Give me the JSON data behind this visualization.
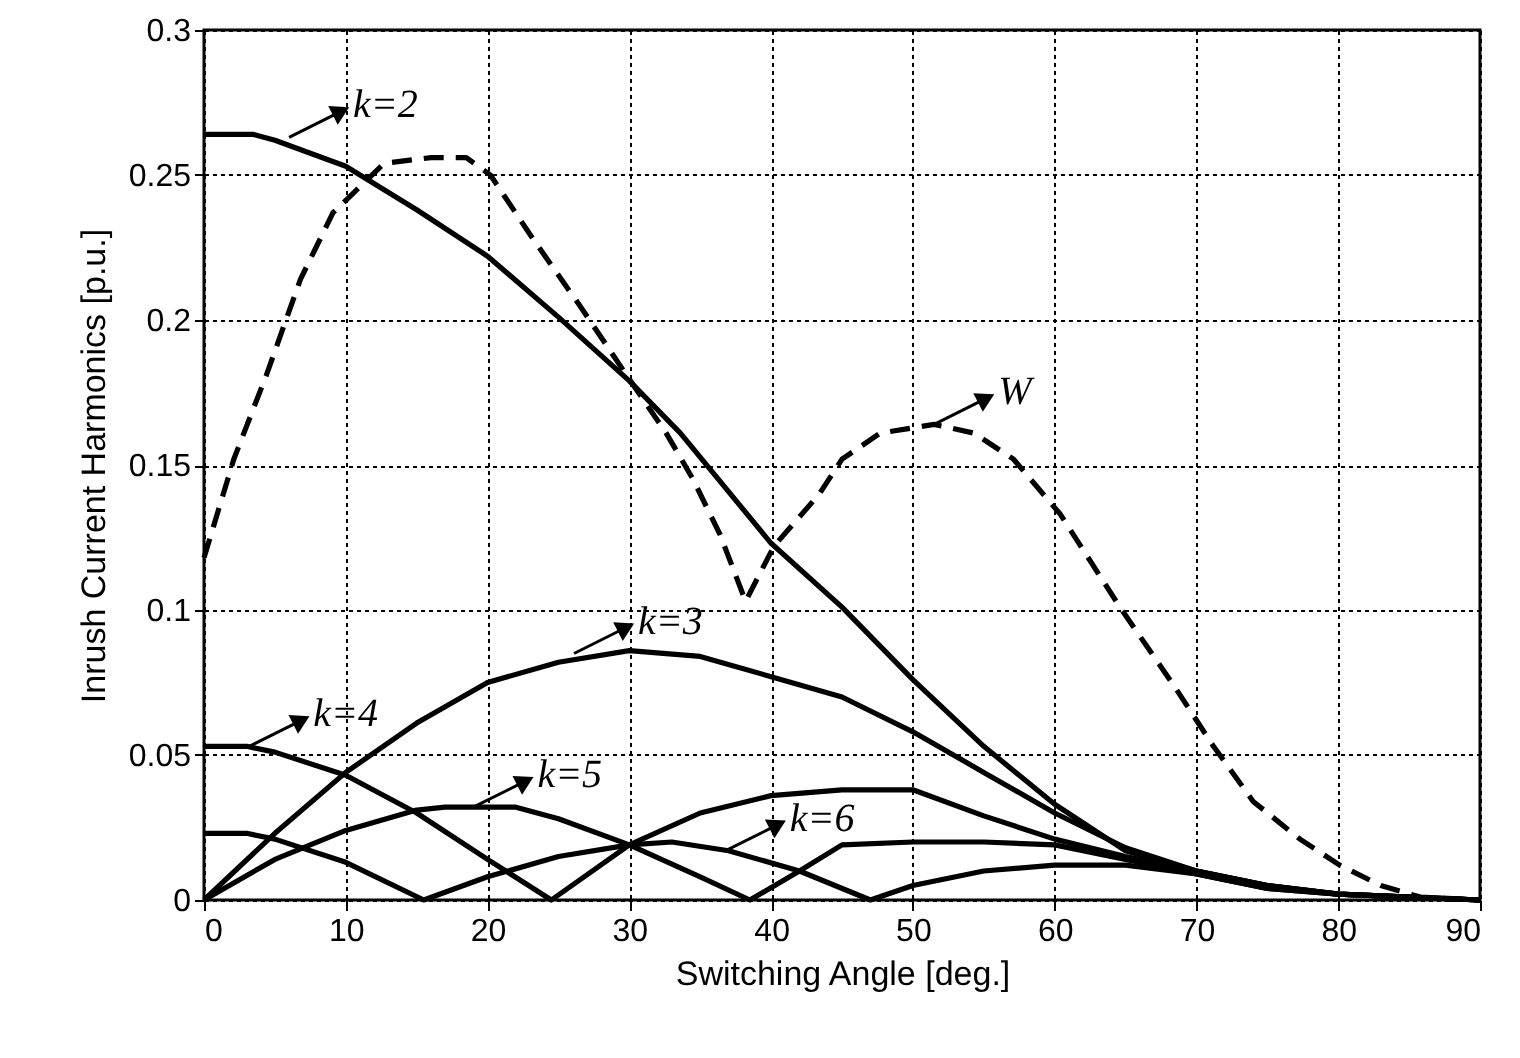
{
  "chart_data": {
    "type": "line",
    "xlabel": "Switching Angle [deg.]",
    "ylabel": "Inrush Current Harmonics [p.u.]",
    "xlim": [
      0,
      90
    ],
    "xticks": [
      0,
      10,
      20,
      30,
      40,
      50,
      60,
      70,
      80,
      90
    ],
    "ylim": [
      0,
      0.3
    ],
    "yticks": [
      0,
      0.05,
      0.1,
      0.15,
      0.2,
      0.25,
      0.3
    ],
    "grid": true,
    "series": [
      {
        "color": "#000000",
        "line_style": "solid",
        "x": [
          0,
          3.5,
          5,
          10,
          15,
          20,
          25,
          30,
          33.6,
          40,
          45,
          50,
          55,
          60,
          65,
          70,
          75,
          80,
          85,
          90
        ],
        "values": [
          0.264,
          0.264,
          0.262,
          0.253,
          0.238,
          0.222,
          0.201,
          0.179,
          0.161,
          0.123,
          0.101,
          0.076,
          0.053,
          0.033,
          0.017,
          0.01,
          0.005,
          0.002,
          0.001,
          0
        ]
      },
      {
        "color": "#000000",
        "line_style": "dashed",
        "x": [
          0,
          2.1,
          4.4,
          6.8,
          9.1,
          12.7,
          16,
          18.5,
          20.2,
          23.2,
          26.5,
          29.8,
          32.6,
          34.5,
          36.4,
          38.2,
          40.2,
          43.4,
          45,
          47.7,
          51.5,
          54.3,
          57.1,
          60.4,
          64.6,
          68.4,
          71.2,
          74,
          77.3,
          80.1,
          83,
          85.8,
          90
        ],
        "values": [
          0.118,
          0.152,
          0.181,
          0.214,
          0.237,
          0.254,
          0.256,
          0.256,
          0.25,
          0.228,
          0.205,
          0.181,
          0.161,
          0.145,
          0.126,
          0.103,
          0.122,
          0.14,
          0.152,
          0.161,
          0.164,
          0.161,
          0.152,
          0.133,
          0.101,
          0.074,
          0.053,
          0.034,
          0.021,
          0.012,
          0.005,
          0.001,
          0
        ]
      },
      {
        "color": "#000000",
        "line_style": "solid",
        "x": [
          0,
          5,
          10,
          15,
          20,
          25,
          30,
          35,
          40,
          45,
          50,
          55,
          60,
          65,
          70,
          75,
          80,
          85,
          90
        ],
        "values": [
          0,
          0.023,
          0.044,
          0.061,
          0.075,
          0.082,
          0.086,
          0.084,
          0.077,
          0.07,
          0.058,
          0.044,
          0.03,
          0.018,
          0.01,
          0.005,
          0.002,
          0.001,
          0
        ]
      },
      {
        "color": "#000000",
        "line_style": "solid",
        "x": [
          0,
          3,
          5,
          10,
          15,
          20,
          24.5,
          30,
          35,
          40,
          45,
          50,
          55,
          60,
          65,
          70,
          75,
          80,
          90
        ],
        "values": [
          0.053,
          0.053,
          0.051,
          0.043,
          0.03,
          0.014,
          0,
          0.019,
          0.03,
          0.036,
          0.038,
          0.038,
          0.029,
          0.021,
          0.015,
          0.01,
          0.005,
          0.002,
          0
        ]
      },
      {
        "color": "#000000",
        "line_style": "solid",
        "x": [
          0,
          5,
          10,
          15,
          17,
          20,
          22,
          25,
          30,
          35,
          38.5,
          42,
          45,
          50,
          55,
          60,
          65,
          70,
          75,
          80,
          90
        ],
        "values": [
          0,
          0.014,
          0.024,
          0.031,
          0.032,
          0.032,
          0.032,
          0.028,
          0.019,
          0.008,
          0,
          0.01,
          0.019,
          0.02,
          0.02,
          0.019,
          0.014,
          0.009,
          0.004,
          0.002,
          0
        ]
      },
      {
        "color": "#000000",
        "line_style": "solid",
        "x": [
          0,
          3,
          5,
          10,
          15.5,
          20,
          25,
          30,
          33,
          37,
          42,
          47,
          50,
          55,
          60,
          65,
          70,
          75,
          80,
          90
        ],
        "values": [
          0.023,
          0.023,
          0.021,
          0.013,
          0,
          0.008,
          0.015,
          0.019,
          0.02,
          0.017,
          0.01,
          0,
          0.005,
          0.01,
          0.012,
          0.012,
          0.009,
          0.004,
          0.002,
          0
        ]
      }
    ],
    "annotations": [
      {
        "text": "k=2",
        "x": 6,
        "y": 0.263
      },
      {
        "text": "W",
        "x": 51.5,
        "y": 0.164
      },
      {
        "text": "k=3",
        "x": 26.1,
        "y": 0.085
      },
      {
        "text": "k=4",
        "x": 3.2,
        "y": 0.053
      },
      {
        "text": "k=5",
        "x": 19,
        "y": 0.032
      },
      {
        "text": "k=6",
        "x": 36.8,
        "y": 0.017
      }
    ]
  }
}
